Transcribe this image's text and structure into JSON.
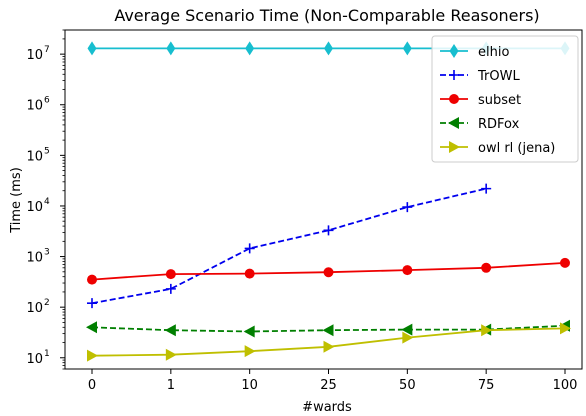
{
  "chart_data": {
    "type": "line",
    "title": "Average Scenario Time (Non-Comparable Reasoners)",
    "xlabel": "#wards",
    "ylabel": "Time (ms)",
    "categories": [
      "0",
      "1",
      "10",
      "25",
      "50",
      "75",
      "100"
    ],
    "yscale": "log",
    "ylim": [
      6,
      30000000
    ],
    "yticks": [
      {
        "value": 10,
        "base": "10",
        "exp": "1"
      },
      {
        "value": 100,
        "base": "10",
        "exp": "2"
      },
      {
        "value": 1000,
        "base": "10",
        "exp": "3"
      },
      {
        "value": 10000,
        "base": "10",
        "exp": "4"
      },
      {
        "value": 100000,
        "base": "10",
        "exp": "5"
      },
      {
        "value": 1000000,
        "base": "10",
        "exp": "6"
      },
      {
        "value": 10000000,
        "base": "10",
        "exp": "7"
      }
    ],
    "grid": false,
    "legend_position": "top-right",
    "series": [
      {
        "name": "elhio",
        "color": "#17becf",
        "dash": "solid",
        "marker": "diamond",
        "values": [
          13000000,
          13000000,
          13000000,
          13000000,
          13000000,
          13000000,
          13000000
        ]
      },
      {
        "name": "TrOWL",
        "color": "#0000ee",
        "dash": "dashed",
        "marker": "plus",
        "values": [
          120,
          230,
          1450,
          3300,
          9500,
          22000,
          null
        ]
      },
      {
        "name": "subset",
        "color": "#ee0000",
        "dash": "solid",
        "marker": "circle",
        "values": [
          350,
          450,
          460,
          490,
          540,
          600,
          750
        ]
      },
      {
        "name": "RDFox",
        "color": "#007f00",
        "dash": "dashed",
        "marker": "triangle-left",
        "values": [
          40,
          35,
          33,
          35,
          36,
          36,
          43
        ]
      },
      {
        "name": "owl rl (jena)",
        "color": "#bfbf00",
        "dash": "solid",
        "marker": "triangle-right",
        "values": [
          11,
          11.5,
          13.5,
          16.5,
          25,
          35,
          38
        ]
      }
    ]
  }
}
